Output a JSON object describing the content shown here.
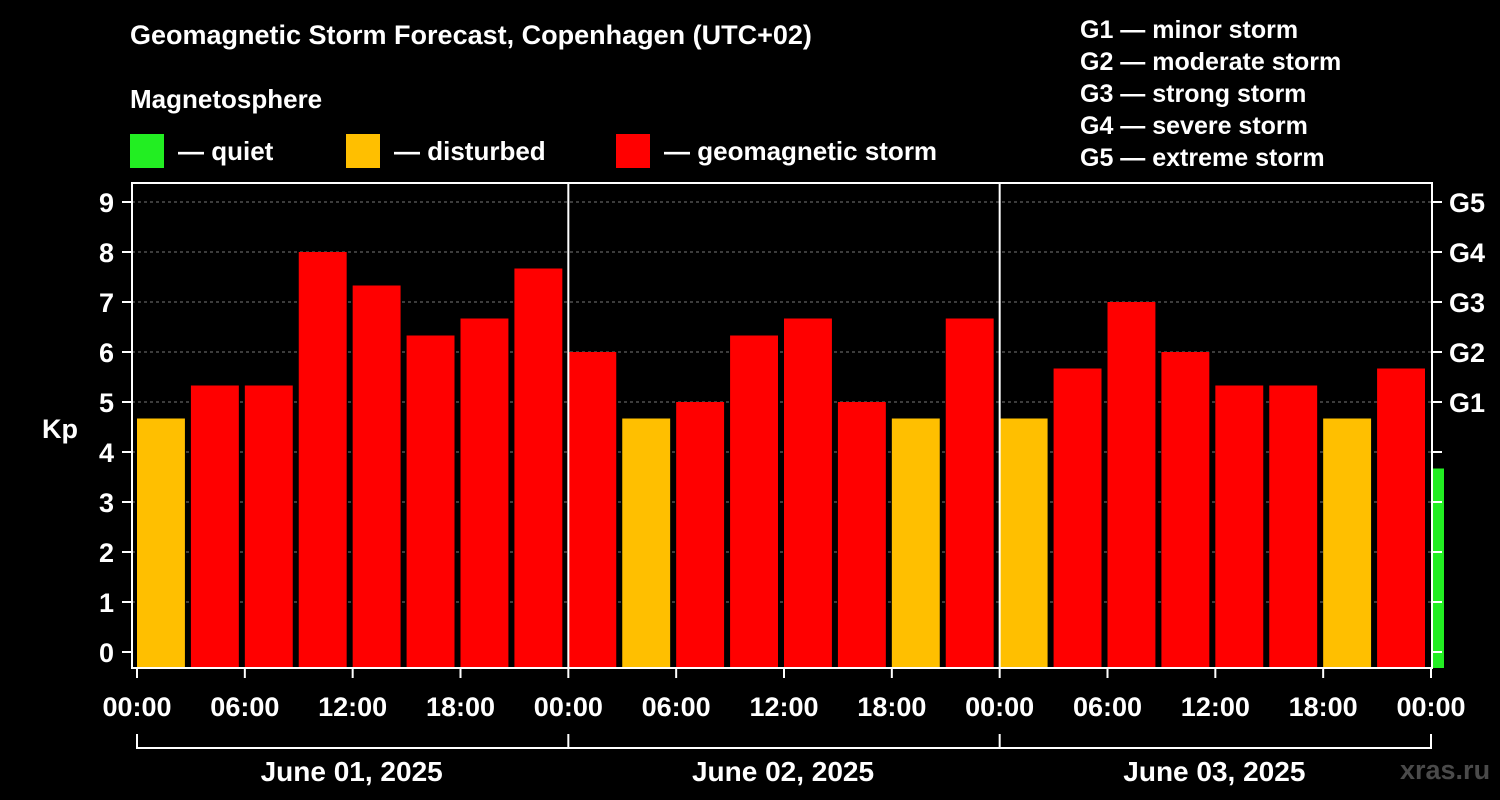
{
  "title": "Geomagnetic Storm Forecast, Copenhagen (UTC+02)",
  "subtitle": "Magnetosphere",
  "legend": [
    {
      "label": "— quiet",
      "color": "#22ee22"
    },
    {
      "label": "— disturbed",
      "color": "#ffbf00"
    },
    {
      "label": "— geomagnetic storm",
      "color": "#ff0000"
    }
  ],
  "g_legend": [
    "G1 — minor storm",
    "G2 — moderate storm",
    "G3 — strong storm",
    "G4 — severe storm",
    "G5 — extreme storm"
  ],
  "watermark": "xras.ru",
  "chart_data": {
    "type": "bar",
    "ylabel": "Kp",
    "ylim": [
      0,
      9
    ],
    "yticks": [
      0,
      1,
      2,
      3,
      4,
      5,
      6,
      7,
      8,
      9
    ],
    "right_ticks": [
      {
        "value": 5,
        "label": "G1"
      },
      {
        "value": 6,
        "label": "G2"
      },
      {
        "value": 7,
        "label": "G3"
      },
      {
        "value": 8,
        "label": "G4"
      },
      {
        "value": 9,
        "label": "G5"
      }
    ],
    "xtick_labels": [
      "00:00",
      "06:00",
      "12:00",
      "18:00",
      "00:00",
      "06:00",
      "12:00",
      "18:00",
      "00:00",
      "06:00",
      "12:00",
      "18:00",
      "00:00"
    ],
    "days": [
      "June 01, 2025",
      "June 02, 2025",
      "June 03, 2025"
    ],
    "grid": "horizontal dashed",
    "colors": {
      "quiet": "#22ee22",
      "disturbed": "#ffbf00",
      "storm": "#ff0000"
    },
    "values": [
      4.67,
      5.33,
      5.33,
      8.0,
      7.33,
      6.33,
      6.67,
      7.67,
      6.0,
      4.67,
      5.0,
      6.33,
      6.67,
      5.0,
      4.67,
      6.67,
      4.67,
      5.67,
      7.0,
      6.0,
      5.33,
      5.33,
      4.67,
      5.67,
      3.67
    ]
  }
}
